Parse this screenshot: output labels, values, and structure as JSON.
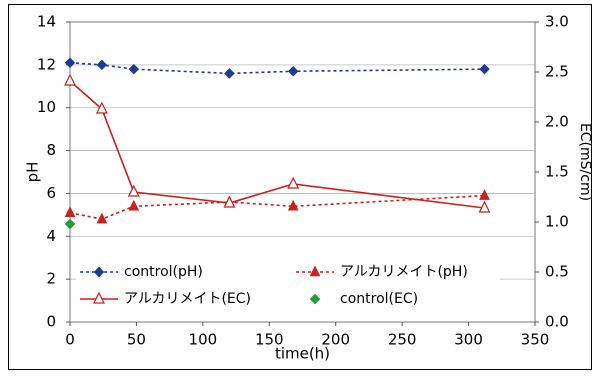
{
  "chart_data": {
    "type": "line",
    "xlabel": "time(h)",
    "ylabel_left": "pH",
    "ylabel_right": "EC(mS/cm)",
    "xlim": [
      0,
      350
    ],
    "ylim_left": [
      0,
      14
    ],
    "ylim_right": [
      0.0,
      3.0
    ],
    "x_ticks": [
      0,
      50,
      100,
      150,
      200,
      250,
      300,
      350
    ],
    "y_left_ticks": [
      0,
      2,
      4,
      6,
      8,
      10,
      12,
      14
    ],
    "y_right_ticks": [
      "0.0",
      "0.5",
      "1.0",
      "1.5",
      "2.0",
      "2.5",
      "3.0"
    ],
    "grid": "horizontal-left-ticks",
    "legend_position": "bottom-inside",
    "series": [
      {
        "name": "control(pH)",
        "axis": "left",
        "style": "dotted",
        "marker": "diamond",
        "color": "#1f3a93",
        "x": [
          0,
          24,
          48,
          120,
          168,
          312
        ],
        "y": [
          12.1,
          12.0,
          11.8,
          11.6,
          11.7,
          11.8
        ]
      },
      {
        "name": "アルカリメイト(pH)",
        "axis": "left",
        "style": "dotted",
        "marker": "filled-triangle",
        "color": "#cc1f1f",
        "x": [
          0,
          24,
          48,
          120,
          168,
          312
        ],
        "y": [
          5.1,
          4.8,
          5.4,
          5.6,
          5.4,
          5.9
        ]
      },
      {
        "name": "アルカリメイト(EC)",
        "axis": "right",
        "style": "solid",
        "marker": "open-triangle",
        "color": "#cc1f1f",
        "x": [
          0,
          24,
          48,
          120,
          168,
          312
        ],
        "y": [
          2.41,
          2.13,
          1.3,
          1.19,
          1.38,
          1.14
        ]
      },
      {
        "name": "control(EC)",
        "axis": "right",
        "style": "none",
        "marker": "diamond",
        "color": "#1f9e3a",
        "x": [
          0
        ],
        "y": [
          0.98
        ]
      }
    ]
  }
}
